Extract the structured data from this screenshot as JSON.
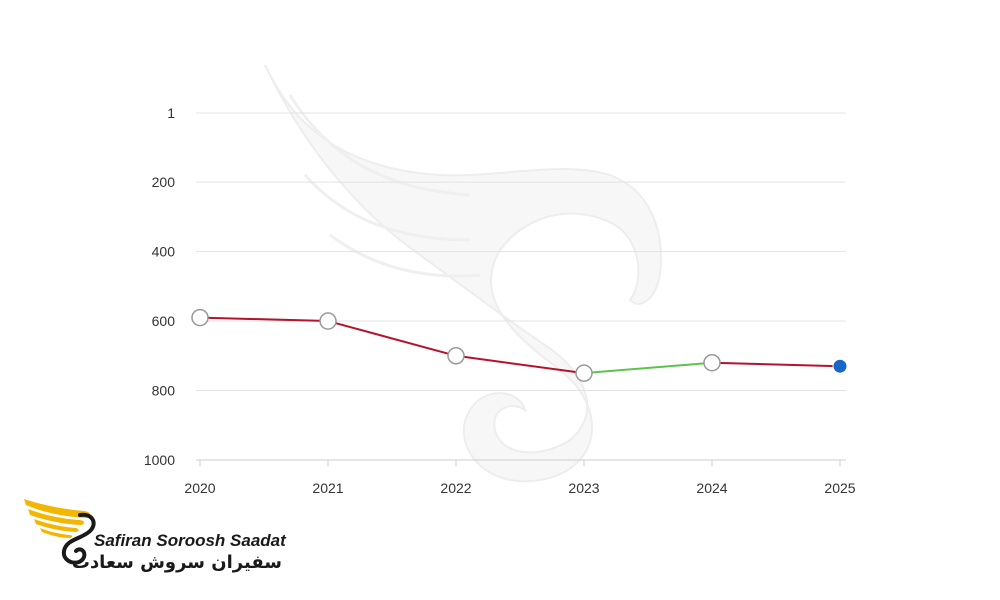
{
  "chart_data": {
    "type": "line",
    "title": "",
    "xlabel": "",
    "ylabel": "",
    "categories": [
      "2020",
      "2021",
      "2022",
      "2023",
      "2024",
      "2025"
    ],
    "series": [
      {
        "values": [
          590,
          600,
          700,
          750,
          720,
          730
        ]
      }
    ],
    "y_ticks": [
      "1",
      "200",
      "400",
      "600",
      "800",
      "1000"
    ],
    "y_tick_values": [
      1,
      200,
      400,
      600,
      800,
      1000
    ],
    "ylim": [
      1,
      1000
    ],
    "y_inverted": true,
    "grid": true,
    "colors": {
      "decline": "#b5122e",
      "rise": "#5cc44a",
      "marker_fill": "#ffffff",
      "marker_stroke": "#999999",
      "last_marker": "#1767c9",
      "grid": "#e3e3e3",
      "axis": "#cccccc"
    }
  },
  "logo": {
    "name_en": "Safiran Soroosh Saadat",
    "name_fa": "سفیران سروش سعادت",
    "accent_color": "#f2b705"
  },
  "watermark": {
    "name": "swan-s-watermark"
  }
}
